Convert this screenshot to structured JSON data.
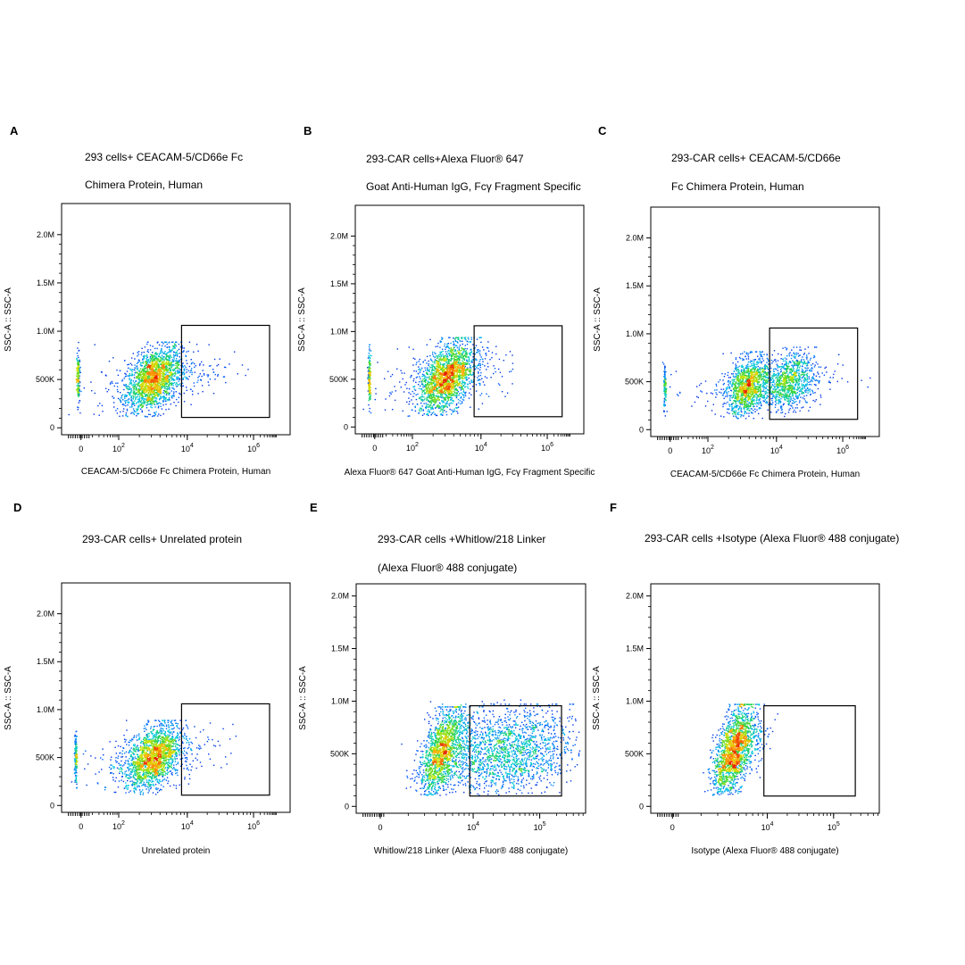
{
  "figure": {
    "panels": [
      {
        "letter": "A",
        "title_lines": [
          "293 cells+ CEACAM-5/CD66e Fc",
          "Chimera Protein, Human"
        ],
        "ylabel": "SSC-A :: SSC-A",
        "xlabel": "CEACAM-5/CD66e Fc Chimera Protein, Human",
        "x_ticks": [
          "0",
          "10^2",
          "10^4",
          "10^6"
        ],
        "y_ticks": [
          "0",
          "500K",
          "1.0M",
          "1.5M",
          "2.0M"
        ]
      },
      {
        "letter": "B",
        "title_lines": [
          "293-CAR cells+Alexa Fluor® 647",
          "Goat Anti-Human IgG, Fcγ Fragment Specific"
        ],
        "ylabel": "SSC-A :: SSC-A",
        "xlabel": "Alexa Fluor® 647 Goat Anti-Human IgG, Fcγ Fragment Specific",
        "x_ticks": [
          "0",
          "10^2",
          "10^4",
          "10^6"
        ],
        "y_ticks": [
          "0",
          "500K",
          "1.0M",
          "1.5M",
          "2.0M"
        ]
      },
      {
        "letter": "C",
        "title_lines": [
          "293-CAR cells+ CEACAM-5/CD66e",
          "Fc Chimera Protein, Human"
        ],
        "ylabel": "SSC-A :: SSC-A",
        "xlabel": "CEACAM-5/CD66e Fc Chimera Protein, Human",
        "x_ticks": [
          "0",
          "10^2",
          "10^4",
          "10^6"
        ],
        "y_ticks": [
          "0",
          "500K",
          "1.0M",
          "1.5M",
          "2.0M"
        ]
      },
      {
        "letter": "D",
        "title_lines": [
          "293-CAR cells+ Unrelated protein"
        ],
        "ylabel": "SSC-A :: SSC-A",
        "xlabel": "Unrelated protein",
        "x_ticks": [
          "0",
          "10^2",
          "10^4",
          "10^6"
        ],
        "y_ticks": [
          "0",
          "500K",
          "1.0M",
          "1.5M",
          "2.0M"
        ]
      },
      {
        "letter": "E",
        "title_lines": [
          "293-CAR cells +Whitlow/218 Linker",
          "(Alexa Fluor® 488 conjugate)"
        ],
        "ylabel": "SSC-A :: SSC-A",
        "xlabel": "Whitlow/218 Linker (Alexa Fluor® 488 conjugate)",
        "x_ticks": [
          "0",
          "10^4",
          "10^5"
        ],
        "y_ticks": [
          "0",
          "500K",
          "1.0M",
          "1.5M",
          "2.0M"
        ]
      },
      {
        "letter": "F",
        "title_lines": [
          "293-CAR cells +Isotype (Alexa Fluor® 488 conjugate)"
        ],
        "ylabel": "SSC-A :: SSC-A",
        "xlabel": "Isotype (Alexa Fluor® 488 conjugate)",
        "x_ticks": [
          "0",
          "10^4",
          "10^5"
        ],
        "y_ticks": [
          "0",
          "500K",
          "1.0M",
          "1.5M",
          "2.0M"
        ]
      }
    ]
  },
  "chart_data": [
    {
      "type": "scatter",
      "panel": "A",
      "x_scale": "biexponential",
      "y_scale": "linear",
      "ylim": [
        0,
        2250000
      ],
      "gate": {
        "x_range": [
          10000,
          5000000
        ],
        "y_range": [
          150000,
          1180000
        ]
      },
      "clusters": [
        {
          "x_center": 1000,
          "y_center": 520000,
          "density": "high"
        },
        {
          "x_center": 0,
          "y_center": 520000,
          "density": "low"
        }
      ]
    },
    {
      "type": "scatter",
      "panel": "B",
      "x_scale": "biexponential",
      "y_scale": "linear",
      "ylim": [
        0,
        2250000
      ],
      "gate": {
        "x_range": [
          8000,
          4000000
        ],
        "y_range": [
          150000,
          1180000
        ]
      },
      "clusters": [
        {
          "x_center": 1600,
          "y_center": 540000,
          "density": "high"
        },
        {
          "x_center": 0,
          "y_center": 540000,
          "density": "low"
        }
      ]
    },
    {
      "type": "scatter",
      "panel": "C",
      "x_scale": "biexponential",
      "y_scale": "linear",
      "ylim": [
        0,
        2250000
      ],
      "gate": {
        "x_range": [
          8000,
          5000000
        ],
        "y_range": [
          150000,
          1180000
        ]
      },
      "clusters": [
        {
          "x_center": 1300,
          "y_center": 460000,
          "density": "high"
        },
        {
          "x_center": 25000,
          "y_center": 530000,
          "density": "medium"
        },
        {
          "x_center": 0,
          "y_center": 500000,
          "density": "low"
        }
      ]
    },
    {
      "type": "scatter",
      "panel": "D",
      "x_scale": "biexponential",
      "y_scale": "linear",
      "ylim": [
        0,
        2250000
      ],
      "gate": {
        "x_range": [
          10000,
          5000000
        ],
        "y_range": [
          150000,
          1180000
        ]
      },
      "clusters": [
        {
          "x_center": 1100,
          "y_center": 520000,
          "density": "high"
        },
        {
          "x_center": 0,
          "y_center": 520000,
          "density": "low"
        }
      ]
    },
    {
      "type": "scatter",
      "panel": "E",
      "x_scale": "biexponential",
      "y_scale": "linear",
      "ylim": [
        0,
        2050000
      ],
      "gate": {
        "x_range": [
          10000,
          220000
        ],
        "y_range": [
          180000,
          1080000
        ]
      },
      "clusters": [
        {
          "x_center": 5000,
          "y_center": 550000,
          "density": "high"
        },
        {
          "x_center": 40000,
          "y_center": 560000,
          "density": "medium"
        }
      ]
    },
    {
      "type": "scatter",
      "panel": "F",
      "x_scale": "biexponential",
      "y_scale": "linear",
      "ylim": [
        0,
        2050000
      ],
      "gate": {
        "x_range": [
          10000,
          220000
        ],
        "y_range": [
          180000,
          1080000
        ]
      },
      "clusters": [
        {
          "x_center": 4500,
          "y_center": 540000,
          "density": "high"
        }
      ]
    }
  ]
}
